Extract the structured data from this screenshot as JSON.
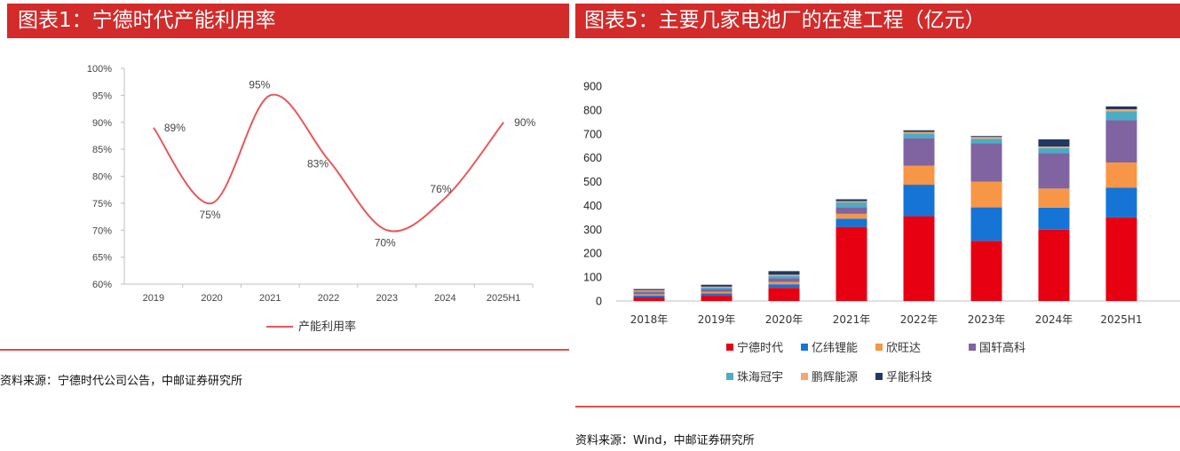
{
  "left": {
    "title": "图表1：宁德时代产能利用率",
    "source": "资料来源：宁德时代公司公告，中邮证券研究所"
  },
  "right": {
    "title": "图表5：主要几家电池厂的在建工程（亿元）",
    "source": "资料来源：Wind，中邮证券研究所"
  },
  "colors": {
    "title_bar": "#d32a2a",
    "line": "#e8585a",
    "series": [
      "#e60012",
      "#1674d6",
      "#f79646",
      "#8064a2",
      "#4bacc6",
      "#f7a56a",
      "#1f3864"
    ]
  },
  "chart_data": [
    {
      "type": "line",
      "title": "",
      "categories": [
        "2019",
        "2020",
        "2021",
        "2022",
        "2023",
        "2024",
        "2025H1"
      ],
      "series": [
        {
          "name": "产能利用率",
          "values": [
            89,
            75,
            95,
            83,
            70,
            76,
            90
          ]
        }
      ],
      "data_labels": [
        "89%",
        "75%",
        "95%",
        "83%",
        "70%",
        "76%",
        "90%"
      ],
      "y_unit": "%",
      "ylim": [
        60,
        100
      ],
      "yticks": [
        "60%",
        "65%",
        "70%",
        "75%",
        "80%",
        "85%",
        "90%",
        "95%",
        "100%"
      ],
      "smooth": true,
      "grid": false,
      "legend": "bottom"
    },
    {
      "type": "bar",
      "stacked": true,
      "title": "",
      "categories": [
        "2018年",
        "2019年",
        "2020年",
        "2021年",
        "2022年",
        "2023年",
        "2024年",
        "2025H1"
      ],
      "series": [
        {
          "name": "宁德时代",
          "values": [
            15,
            22,
            55,
            310,
            355,
            252,
            298,
            350
          ]
        },
        {
          "name": "亿纬锂能",
          "values": [
            8,
            10,
            15,
            35,
            132,
            140,
            93,
            125
          ]
        },
        {
          "name": "欣旺达",
          "values": [
            5,
            6,
            10,
            20,
            80,
            108,
            80,
            105
          ]
        },
        {
          "name": "国轩高科",
          "values": [
            9,
            12,
            15,
            28,
            115,
            160,
            148,
            177
          ]
        },
        {
          "name": "珠海冠宇",
          "values": [
            5,
            6,
            10,
            20,
            20,
            20,
            22,
            38
          ]
        },
        {
          "name": "鹏辉能源",
          "values": [
            3,
            4,
            5,
            5,
            6,
            7,
            6,
            8
          ]
        },
        {
          "name": "孚能科技",
          "values": [
            5,
            8,
            15,
            8,
            7,
            4,
            30,
            12
          ]
        }
      ],
      "ylim": [
        0,
        900
      ],
      "yticks": [
        "0",
        "100",
        "200",
        "300",
        "400",
        "500",
        "600",
        "700",
        "800",
        "900"
      ],
      "grid": false,
      "legend": "bottom"
    }
  ]
}
